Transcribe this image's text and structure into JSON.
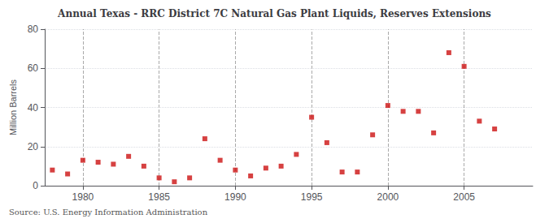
{
  "chart_data": {
    "type": "scatter",
    "title": "Annual Texas - RRC District 7C Natural Gas Plant Liquids, Reserves Extensions",
    "ylabel": "Million Barrels",
    "source": "Source: U.S. Energy Information Administration",
    "color": "#cc1111",
    "marker": "square",
    "grid": true,
    "xlim": [
      1977.5,
      2009.5
    ],
    "ylim": [
      0,
      80
    ],
    "xticks": [
      1980,
      1985,
      1990,
      1995,
      2000,
      2005
    ],
    "yticks": [
      0,
      20,
      40,
      60,
      80
    ],
    "x": [
      1978,
      1979,
      1980,
      1981,
      1982,
      1983,
      1984,
      1985,
      1986,
      1987,
      1988,
      1989,
      1990,
      1991,
      1992,
      1993,
      1994,
      1995,
      1996,
      1997,
      1998,
      1999,
      2000,
      2001,
      2002,
      2003,
      2004,
      2005,
      2006,
      2007,
      2008
    ],
    "values": [
      8,
      6,
      13,
      12,
      11,
      15,
      10,
      4,
      2,
      4,
      24,
      13,
      8,
      5,
      9,
      10,
      16,
      35,
      22,
      7,
      7,
      26,
      41,
      38,
      38,
      27,
      68,
      61,
      33,
      29,
      null
    ]
  }
}
